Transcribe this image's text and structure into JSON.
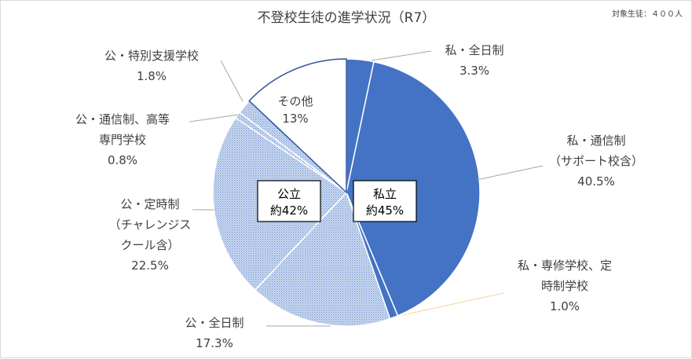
{
  "chart_data": {
    "type": "pie",
    "title": "不登校生徒の進学状況（R7）",
    "note": "対象生徒：４００人",
    "slices": [
      {
        "label_lines": [
          "私・全日制"
        ],
        "value_label": "3.3%",
        "value": 3.3,
        "color": "#4472C4",
        "fill": "solid"
      },
      {
        "label_lines": [
          "私・通信制",
          "（サポート校含）"
        ],
        "value_label": "40.5%",
        "value": 40.5,
        "color": "#4472C4",
        "fill": "solid"
      },
      {
        "label_lines": [
          "私・専修学校、定",
          "時制学校"
        ],
        "value_label": "1.0%",
        "value": 1.0,
        "color": "#4472C4",
        "fill": "solid"
      },
      {
        "label_lines": [
          "公・全日制"
        ],
        "value_label": "17.3%",
        "value": 17.3,
        "color": "#8FAADC",
        "fill": "pattern"
      },
      {
        "label_lines": [
          "公・定時制",
          "（チャレンジス",
          "クール含）"
        ],
        "value_label": "22.5%",
        "value": 22.5,
        "color": "#8FAADC",
        "fill": "pattern"
      },
      {
        "label_lines": [
          "公・通信制、高等",
          "専門学校"
        ],
        "value_label": "0.8%",
        "value": 0.8,
        "color": "#8FAADC",
        "fill": "pattern"
      },
      {
        "label_lines": [
          "公・特別支援学校"
        ],
        "value_label": "1.8%",
        "value": 1.8,
        "color": "#8FAADC",
        "fill": "pattern"
      },
      {
        "label_lines": [
          "その他"
        ],
        "value_label": "13%",
        "value": 13,
        "color": "#FFFFFF",
        "fill": "solid"
      }
    ],
    "group_labels": {
      "private": [
        "私立",
        "約45%"
      ],
      "public": [
        "公立",
        "約42%"
      ]
    }
  }
}
